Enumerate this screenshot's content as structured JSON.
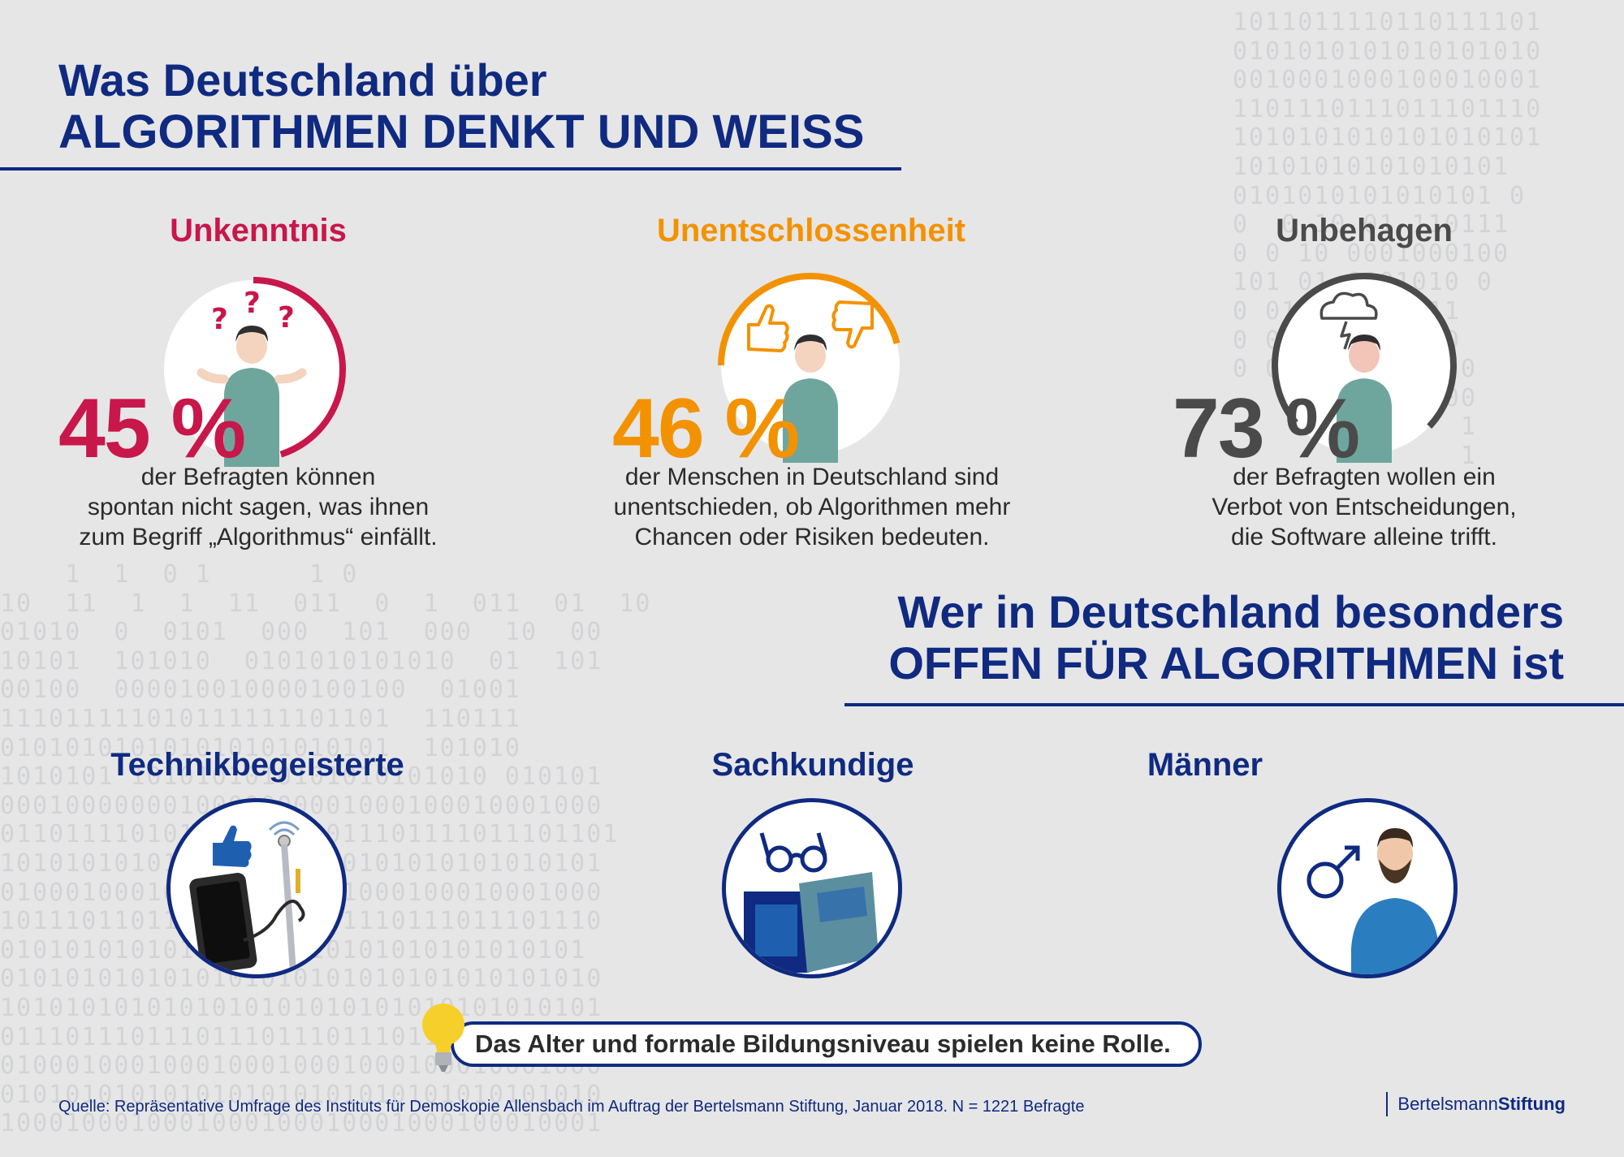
{
  "background": {
    "binary_right": "1011011110110111101\n0101010101010101010\n0010001000100010001\n1101110111011101110\n1010101010101010101\n10101010101010101\n0101010101010101 0\n0  0 10 01 110111\n0 0 10 0001000100\n101 01 0101010 0\n0 0101 101 111\n0 0101 101 100\n0 0101010 010 0\n             00\n              1\n              1",
    "binary_left": "    1  1  0 1      1 0\n10  11  1  1  11  011  0  1  011  01  10\n01010  0  0101  000  101  000  10  00\n10101  101010  0101010101010  01  101\n00100  000010010000100100  01001\n111011111010111111101101  110111\n010101010101010101010101  101010\n1010101 1010101010101010101010 010101\n0001000000010000000001000100010001000\n01101111010100101111011101111011101101\n1010101010101010101010101010101010101\n0100010001000100010001000100010001000\n1011101101110111011101110111011101110\n010101010101010101010101010101010101\n0101010101010101010101010101010101010\n1010101010101010101010101010101010101\n0111011101110111011101110111011101110\n0100010001000100010001000100010001000\n0101010101010101010101010101010101010\n1000100010001000100010001000100010001"
  },
  "title": {
    "line1": "Was Deutschland über",
    "line2": "ALGORITHMEN DENKT UND WEISS"
  },
  "colors": {
    "navy": "#0f2a80",
    "crimson": "#c8174a",
    "orange": "#f39200",
    "grey": "#4a4a4a"
  },
  "stats": [
    {
      "heading": "Unkenntnis",
      "value": "45 %",
      "percent": 45,
      "color": "#c8174a",
      "icon": "question-marks-icon",
      "desc": [
        "der Befragten können",
        "spontan nicht sagen, was ihnen",
        "zum Begriff „Algorithmus“ einfällt."
      ]
    },
    {
      "heading": "Unentschlossenheit",
      "value": "46 %",
      "percent": 46,
      "color": "#f39200",
      "icon": "thumbs-up-down-icon",
      "desc": [
        "der Menschen in Deutschland sind",
        "unentschieden, ob Algorithmen mehr",
        "Chancen oder Risiken bedeuten."
      ]
    },
    {
      "heading": "Unbehagen",
      "value": "73 %",
      "percent": 73,
      "color": "#4a4a4a",
      "icon": "storm-cloud-icon",
      "desc": [
        "der Befragten wollen ein",
        "Verbot von Entscheidungen,",
        "die Software alleine trifft."
      ]
    }
  ],
  "subtitle": {
    "line1": "Wer in Deutschland besonders",
    "line2": "OFFEN FÜR ALGORITHMEN ist"
  },
  "groups": [
    {
      "label": "Technikbegeisterte",
      "icon": "smartphone-thumbs-up-icon"
    },
    {
      "label": "Sachkundige",
      "icon": "glasses-books-icon"
    },
    {
      "label": "Männer",
      "icon": "male-symbol-man-icon"
    }
  ],
  "note": "Das Alter und formale Bildungsniveau spielen keine Rolle.",
  "source": "Quelle: Repräsentative Umfrage des Instituts für Demoskopie Allensbach im Auftrag der Bertelsmann Stiftung, Januar 2018. N = 1221 Befragte",
  "brand": {
    "part1": "Bertelsmann",
    "part2": "Stiftung"
  }
}
